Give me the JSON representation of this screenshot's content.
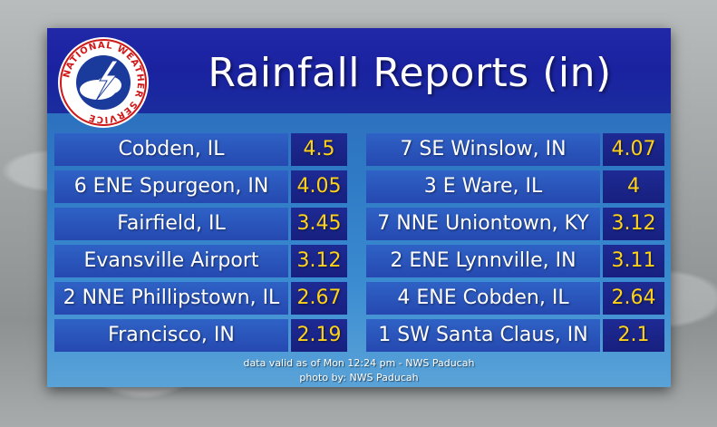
{
  "title": "Rainfall Reports (in)",
  "logo": {
    "text": "NATIONAL WEATHER SERVICE"
  },
  "reports": [
    {
      "location": "Cobden, IL",
      "value": "4.5"
    },
    {
      "location": "7 SE Winslow, IN",
      "value": "4.07"
    },
    {
      "location": "6 ENE Spurgeon, IN",
      "value": "4.05"
    },
    {
      "location": "3 E Ware, IL",
      "value": "4"
    },
    {
      "location": "Fairfield, IL",
      "value": "3.45"
    },
    {
      "location": "7 NNE Uniontown, KY",
      "value": "3.12"
    },
    {
      "location": "Evansville Airport",
      "value": "3.12"
    },
    {
      "location": "2 ENE Lynnville, IN",
      "value": "3.11"
    },
    {
      "location": "2 NNE Phillipstown, IL",
      "value": "2.67"
    },
    {
      "location": "4 ENE Cobden, IL",
      "value": "2.64"
    },
    {
      "location": "Francisco, IN",
      "value": "2.19"
    },
    {
      "location": "1 SW Santa Claus, IN",
      "value": "2.1"
    }
  ],
  "footer": {
    "valid": "data valid as of Mon 12:24 pm - NWS Paducah",
    "photo": "photo by: NWS Paducah"
  },
  "colors": {
    "header": "#1a22a0",
    "value_text": "#ffd21a",
    "location_cell": "#2549b0",
    "value_cell": "#17207f"
  }
}
